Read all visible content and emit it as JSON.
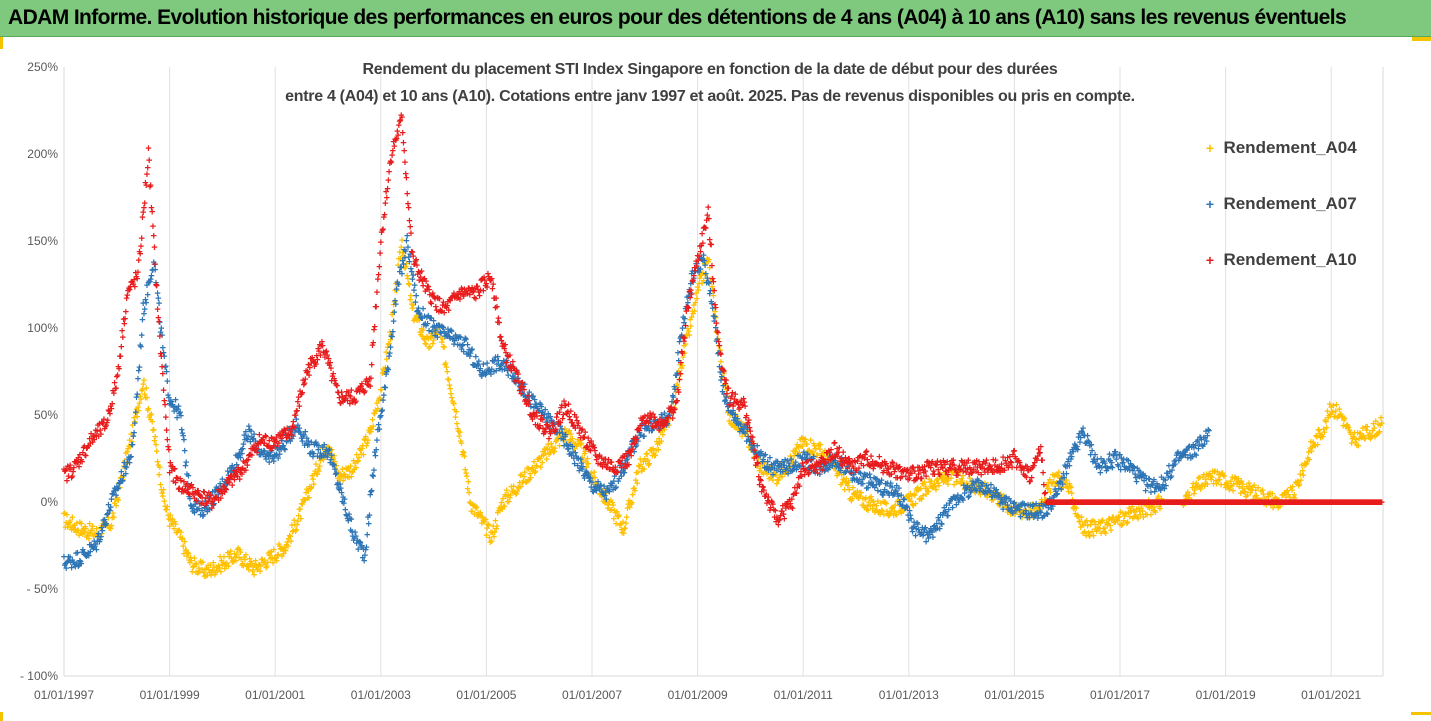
{
  "header": {
    "title": "ADAM Informe. Evolution historique des performances en euros pour des détentions de 4 ans (A04) à 10 ans (A10) sans les revenus éventuels"
  },
  "colors": {
    "header_bg": "#7fc97f",
    "A04": "#ffc000",
    "A07": "#2e75b6",
    "A10": "#e81c1c"
  },
  "chart_data": {
    "type": "scatter",
    "title_line1": "Rendement du placement STI Index Singapore en fonction de la date de début pour des durées",
    "title_line2": "entre 4 (A04) et 10 ans (A10). Cotations entre janv 1997 et août. 2025. Pas de revenus disponibles ou pris en compte.",
    "ylim": [
      -100,
      250
    ],
    "y_ticks": [
      "250%",
      "200%",
      "150%",
      "100%",
      "50%",
      "0%",
      "- 50%",
      "- 100%"
    ],
    "x_ticks": [
      "01/01/1997",
      "01/01/1999",
      "01/01/2001",
      "01/01/2003",
      "01/01/2005",
      "01/01/2007",
      "01/01/2009",
      "01/01/2011",
      "01/01/2013",
      "01/01/2015",
      "01/01/2017",
      "01/01/2019",
      "01/01/2021"
    ],
    "xlim_years": [
      1997,
      2022.5
    ],
    "grid": "vertical",
    "legend_position": "right",
    "series": [
      {
        "name": "Rendement_A04",
        "color": "#ffc000",
        "points": [
          [
            1997.0,
            -10
          ],
          [
            1997.3,
            -15
          ],
          [
            1997.6,
            -18
          ],
          [
            1997.9,
            -12
          ],
          [
            1998.1,
            15
          ],
          [
            1998.3,
            40
          ],
          [
            1998.5,
            70
          ],
          [
            1998.7,
            40
          ],
          [
            1998.9,
            0
          ],
          [
            1999.0,
            -10
          ],
          [
            1999.2,
            -20
          ],
          [
            1999.4,
            -35
          ],
          [
            1999.7,
            -40
          ],
          [
            2000.0,
            -35
          ],
          [
            2000.3,
            -30
          ],
          [
            2000.6,
            -38
          ],
          [
            2000.9,
            -32
          ],
          [
            2001.2,
            -25
          ],
          [
            2001.5,
            -5
          ],
          [
            2001.8,
            20
          ],
          [
            2002.0,
            35
          ],
          [
            2002.2,
            15
          ],
          [
            2002.5,
            20
          ],
          [
            2002.8,
            40
          ],
          [
            2003.0,
            65
          ],
          [
            2003.2,
            100
          ],
          [
            2003.4,
            150
          ],
          [
            2003.6,
            110
          ],
          [
            2003.9,
            90
          ],
          [
            2004.1,
            100
          ],
          [
            2004.3,
            70
          ],
          [
            2004.5,
            40
          ],
          [
            2004.7,
            0
          ],
          [
            2004.9,
            -10
          ],
          [
            2005.1,
            -20
          ],
          [
            2005.3,
            0
          ],
          [
            2005.6,
            10
          ],
          [
            2005.9,
            20
          ],
          [
            2006.2,
            30
          ],
          [
            2006.5,
            40
          ],
          [
            2006.8,
            30
          ],
          [
            2007.0,
            15
          ],
          [
            2007.3,
            0
          ],
          [
            2007.6,
            -15
          ],
          [
            2007.9,
            20
          ],
          [
            2008.2,
            30
          ],
          [
            2008.5,
            50
          ],
          [
            2008.7,
            80
          ],
          [
            2009.0,
            120
          ],
          [
            2009.2,
            140
          ],
          [
            2009.4,
            90
          ],
          [
            2009.6,
            50
          ],
          [
            2009.9,
            40
          ],
          [
            2010.2,
            20
          ],
          [
            2010.5,
            15
          ],
          [
            2010.8,
            25
          ],
          [
            2011.0,
            35
          ],
          [
            2011.3,
            30
          ],
          [
            2011.6,
            20
          ],
          [
            2011.9,
            5
          ],
          [
            2012.2,
            0
          ],
          [
            2012.6,
            -5
          ],
          [
            2013.0,
            0
          ],
          [
            2013.4,
            10
          ],
          [
            2013.8,
            15
          ],
          [
            2014.2,
            10
          ],
          [
            2014.6,
            5
          ],
          [
            2015.0,
            -5
          ],
          [
            2015.4,
            -5
          ],
          [
            2015.8,
            15
          ],
          [
            2016.0,
            10
          ],
          [
            2016.3,
            -15
          ],
          [
            2016.6,
            -15
          ],
          [
            2017.0,
            -10
          ],
          [
            2017.4,
            -5
          ],
          [
            2017.8,
            0
          ],
          [
            2018.2,
            0
          ],
          [
            2018.5,
            10
          ],
          [
            2018.8,
            15
          ],
          [
            2019.2,
            10
          ],
          [
            2019.6,
            5
          ],
          [
            2020.0,
            0
          ],
          [
            2020.3,
            5
          ],
          [
            2020.6,
            30
          ],
          [
            2020.9,
            45
          ],
          [
            2021.0,
            55
          ],
          [
            2021.2,
            50
          ],
          [
            2021.4,
            35
          ],
          [
            2021.7,
            40
          ],
          [
            2022.0,
            45
          ]
        ]
      },
      {
        "name": "Rendement_A07",
        "color": "#2e75b6",
        "points": [
          [
            1997.0,
            -35
          ],
          [
            1997.3,
            -32
          ],
          [
            1997.6,
            -25
          ],
          [
            1997.9,
            0
          ],
          [
            1998.1,
            15
          ],
          [
            1998.3,
            30
          ],
          [
            1998.5,
            110
          ],
          [
            1998.7,
            140
          ],
          [
            1998.9,
            80
          ],
          [
            1999.0,
            60
          ],
          [
            1999.2,
            50
          ],
          [
            1999.4,
            0
          ],
          [
            1999.6,
            -5
          ],
          [
            1999.9,
            5
          ],
          [
            2000.2,
            20
          ],
          [
            2000.5,
            40
          ],
          [
            2000.8,
            25
          ],
          [
            2001.1,
            30
          ],
          [
            2001.4,
            45
          ],
          [
            2001.7,
            30
          ],
          [
            2002.0,
            30
          ],
          [
            2002.2,
            10
          ],
          [
            2002.5,
            -20
          ],
          [
            2002.7,
            -30
          ],
          [
            2002.9,
            30
          ],
          [
            2003.1,
            70
          ],
          [
            2003.3,
            120
          ],
          [
            2003.5,
            150
          ],
          [
            2003.7,
            110
          ],
          [
            2004.0,
            100
          ],
          [
            2004.3,
            95
          ],
          [
            2004.6,
            90
          ],
          [
            2004.9,
            75
          ],
          [
            2005.2,
            80
          ],
          [
            2005.5,
            75
          ],
          [
            2005.8,
            60
          ],
          [
            2006.1,
            50
          ],
          [
            2006.4,
            40
          ],
          [
            2006.7,
            25
          ],
          [
            2007.0,
            10
          ],
          [
            2007.3,
            5
          ],
          [
            2007.6,
            20
          ],
          [
            2007.9,
            40
          ],
          [
            2008.2,
            45
          ],
          [
            2008.5,
            50
          ],
          [
            2008.7,
            100
          ],
          [
            2008.9,
            130
          ],
          [
            2009.1,
            140
          ],
          [
            2009.3,
            110
          ],
          [
            2009.5,
            60
          ],
          [
            2009.8,
            45
          ],
          [
            2010.1,
            30
          ],
          [
            2010.4,
            20
          ],
          [
            2010.7,
            20
          ],
          [
            2011.0,
            25
          ],
          [
            2011.3,
            20
          ],
          [
            2011.6,
            25
          ],
          [
            2012.0,
            15
          ],
          [
            2012.4,
            10
          ],
          [
            2012.8,
            5
          ],
          [
            2013.1,
            -15
          ],
          [
            2013.4,
            -20
          ],
          [
            2013.7,
            -5
          ],
          [
            2014.0,
            5
          ],
          [
            2014.4,
            10
          ],
          [
            2014.8,
            0
          ],
          [
            2015.2,
            -5
          ],
          [
            2015.6,
            -5
          ],
          [
            2015.8,
            5
          ],
          [
            2016.0,
            20
          ],
          [
            2016.3,
            40
          ],
          [
            2016.6,
            20
          ],
          [
            2016.9,
            25
          ],
          [
            2017.2,
            20
          ],
          [
            2017.5,
            10
          ],
          [
            2017.8,
            10
          ],
          [
            2018.1,
            25
          ],
          [
            2018.4,
            30
          ],
          [
            2018.7,
            40
          ]
        ]
      },
      {
        "name": "Rendement_A10",
        "color": "#e81c1c",
        "points": [
          [
            1997.0,
            15
          ],
          [
            1997.2,
            20
          ],
          [
            1997.5,
            35
          ],
          [
            1997.8,
            45
          ],
          [
            1998.0,
            70
          ],
          [
            1998.2,
            120
          ],
          [
            1998.4,
            130
          ],
          [
            1998.6,
            200
          ],
          [
            1998.8,
            100
          ],
          [
            1999.0,
            20
          ],
          [
            1999.2,
            10
          ],
          [
            1999.5,
            5
          ],
          [
            1999.8,
            0
          ],
          [
            2000.1,
            10
          ],
          [
            2000.4,
            20
          ],
          [
            2000.7,
            35
          ],
          [
            2001.0,
            35
          ],
          [
            2001.3,
            40
          ],
          [
            2001.6,
            75
          ],
          [
            2001.9,
            90
          ],
          [
            2002.2,
            60
          ],
          [
            2002.5,
            60
          ],
          [
            2002.8,
            70
          ],
          [
            2003.0,
            150
          ],
          [
            2003.2,
            200
          ],
          [
            2003.4,
            220
          ],
          [
            2003.6,
            140
          ],
          [
            2003.9,
            120
          ],
          [
            2004.2,
            110
          ],
          [
            2004.5,
            120
          ],
          [
            2004.8,
            120
          ],
          [
            2005.1,
            130
          ],
          [
            2005.3,
            90
          ],
          [
            2005.6,
            70
          ],
          [
            2005.9,
            50
          ],
          [
            2006.2,
            40
          ],
          [
            2006.5,
            55
          ],
          [
            2006.8,
            40
          ],
          [
            2007.1,
            25
          ],
          [
            2007.4,
            20
          ],
          [
            2007.7,
            25
          ],
          [
            2008.0,
            50
          ],
          [
            2008.3,
            45
          ],
          [
            2008.6,
            55
          ],
          [
            2008.8,
            110
          ],
          [
            2009.0,
            140
          ],
          [
            2009.2,
            165
          ],
          [
            2009.4,
            90
          ],
          [
            2009.6,
            60
          ],
          [
            2009.9,
            55
          ],
          [
            2010.2,
            10
          ],
          [
            2010.5,
            -10
          ],
          [
            2010.8,
            0
          ],
          [
            2011.0,
            20
          ],
          [
            2011.3,
            20
          ],
          [
            2011.6,
            30
          ],
          [
            2011.9,
            20
          ],
          [
            2012.2,
            25
          ],
          [
            2012.6,
            20
          ],
          [
            2013.0,
            15
          ],
          [
            2013.4,
            20
          ],
          [
            2013.8,
            20
          ],
          [
            2014.2,
            20
          ],
          [
            2014.6,
            20
          ],
          [
            2015.0,
            25
          ],
          [
            2015.3,
            15
          ],
          [
            2015.5,
            30
          ],
          [
            2015.6,
            0
          ],
          [
            2016.0,
            0
          ],
          [
            2017.0,
            0
          ],
          [
            2018.0,
            0
          ],
          [
            2019.0,
            0
          ],
          [
            2020.0,
            0
          ],
          [
            2021.0,
            0
          ],
          [
            2022.0,
            0
          ],
          [
            2022.5,
            0
          ]
        ]
      }
    ]
  }
}
